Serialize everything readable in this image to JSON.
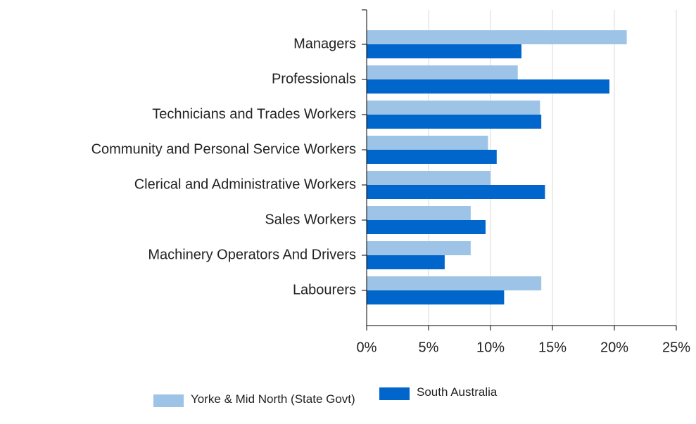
{
  "chart_data": {
    "type": "hbar",
    "categories": [
      "Managers",
      "Professionals",
      "Technicians and Trades Workers",
      "Community and Personal Service Workers",
      "Clerical and Administrative Workers",
      "Sales Workers",
      "Machinery Operators And Drivers",
      "Labourers"
    ],
    "series": [
      {
        "name": "Yorke & Mid North (State Govt)",
        "color": "#9dc3e6",
        "values": [
          21.0,
          12.2,
          14.0,
          9.8,
          10.0,
          8.4,
          8.4,
          14.1
        ]
      },
      {
        "name": "South Australia",
        "color": "#0066cc",
        "values": [
          12.5,
          19.6,
          14.1,
          10.5,
          14.4,
          9.6,
          6.3,
          11.1
        ]
      }
    ],
    "xlim": [
      0,
      25
    ],
    "xticks": [
      {
        "value": 0,
        "label": "0%"
      },
      {
        "value": 5,
        "label": "5%"
      },
      {
        "value": 10,
        "label": "10%"
      },
      {
        "value": 15,
        "label": "15%"
      },
      {
        "value": 20,
        "label": "20%"
      },
      {
        "value": 25,
        "label": "25%"
      }
    ],
    "grid": true,
    "legend": "bottom"
  }
}
